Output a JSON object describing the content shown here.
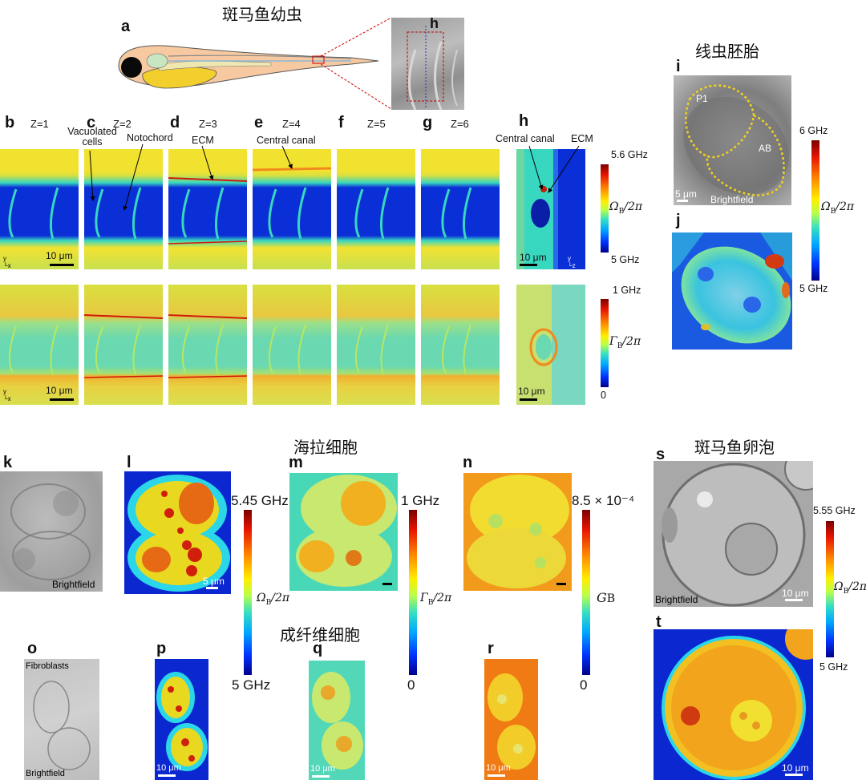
{
  "titles": {
    "zebrafish_larva": "斑马鱼幼虫",
    "nematode_embryo": "线虫胚胎",
    "hela_cells": "海拉细胞",
    "fibroblasts": "成纤维细胞",
    "zebrafish_oocyte": "斑马鱼卵泡"
  },
  "panel_letters": {
    "a": "a",
    "b": "b",
    "c": "c",
    "d": "d",
    "e": "e",
    "f": "f",
    "g": "g",
    "h": "h",
    "h_inset": "h",
    "i": "i",
    "j": "j",
    "k": "k",
    "l": "l",
    "m": "m",
    "n": "n",
    "o": "o",
    "p": "p",
    "q": "q",
    "r": "r",
    "s": "s",
    "t": "t"
  },
  "z_labels": [
    "Z=1",
    "Z=2",
    "Z=3",
    "Z=4",
    "Z=5",
    "Z=6"
  ],
  "annotations": {
    "vacuolated_cells": "Vacuolated\ncells",
    "notochord": "Notochord",
    "ecm": "ECM",
    "central_canal": "Central canal",
    "central_canal_h": "Central canal",
    "ecm_h": "ECM",
    "p1": "P1",
    "ab": "AB",
    "brightfield": "Brightfield",
    "fibroblasts_label": "Fibroblasts"
  },
  "scale_bars": {
    "um10": "10 μm",
    "um5": "5 μm"
  },
  "axes": {
    "y": "y",
    "x": "x",
    "z": "z"
  },
  "colorbars": {
    "larva_omega": {
      "max": "5.6 GHz",
      "min": "5 GHz",
      "symbol": "Ω",
      "sub": "B",
      "den": "/2π"
    },
    "larva_gamma": {
      "max": "1 GHz",
      "min": "0",
      "symbol": "Γ",
      "sub": "B",
      "den": "/2π"
    },
    "embryo_omega": {
      "max": "6 GHz",
      "min": "5 GHz",
      "symbol": "Ω",
      "sub": "B",
      "den": "/2π"
    },
    "hela_omega": {
      "max": "5.45 GHz",
      "min": "5 GHz",
      "symbol": "Ω",
      "sub": "B",
      "den": "/2π"
    },
    "hela_gamma": {
      "max": "1 GHz",
      "min": "0",
      "symbol": "Γ",
      "sub": "B",
      "den": "/2π"
    },
    "hela_g": {
      "max": "8.5 × 10⁻⁴",
      "min": "0",
      "symbol": "G",
      "sub": "B",
      "den": ""
    },
    "oocyte_omega": {
      "max": "5.55 GHz",
      "min": "5 GHz",
      "symbol": "Ω",
      "sub": "B",
      "den": "/2π"
    }
  },
  "colors": {
    "jet_dark_blue": "#0a2fd6",
    "jet_cyan": "#37d7c0",
    "jet_yellow": "#f2e230",
    "jet_orange": "#f08a1c",
    "jet_red": "#d01a0a",
    "annotation_red": "#cc0000"
  }
}
